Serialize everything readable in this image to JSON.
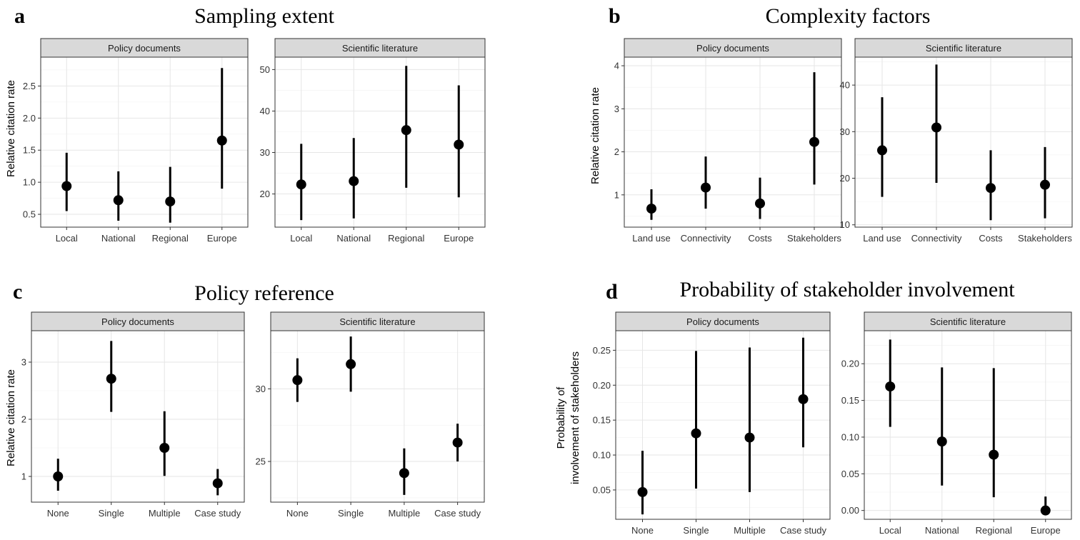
{
  "chart_data": [
    {
      "panel": "a",
      "title": "Sampling extent",
      "ylabel": "Relative citation rate",
      "type": "scatter",
      "facets": [
        {
          "label": "Policy documents",
          "categories": [
            "Local",
            "National",
            "Regional",
            "Europe"
          ],
          "values": [
            0.94,
            0.72,
            0.7,
            1.65
          ],
          "lower": [
            0.55,
            0.4,
            0.37,
            0.9
          ],
          "upper": [
            1.46,
            1.17,
            1.24,
            2.78
          ],
          "ylim": [
            0.3,
            2.95
          ],
          "yticks": [
            0.5,
            1.0,
            1.5,
            2.0,
            2.5
          ],
          "yticklabels": [
            "0.5",
            "1.0",
            "1.5",
            "2.0",
            "2.5"
          ]
        },
        {
          "label": "Scientific literature",
          "categories": [
            "Local",
            "National",
            "Regional",
            "Europe"
          ],
          "values": [
            22.3,
            23.1,
            35.4,
            31.9
          ],
          "lower": [
            13.7,
            14.1,
            21.5,
            19.2
          ],
          "upper": [
            32.1,
            33.5,
            50.9,
            46.2
          ],
          "ylim": [
            12.0,
            53.0
          ],
          "yticks": [
            20,
            30,
            40,
            50
          ],
          "yticklabels": [
            "20",
            "30",
            "40",
            "50"
          ]
        }
      ]
    },
    {
      "panel": "b",
      "title": "Complexity factors",
      "ylabel": "Relative citation rate",
      "type": "scatter",
      "facets": [
        {
          "label": "Policy documents",
          "categories": [
            "Land use",
            "Connectivity",
            "Costs",
            "Stakeholders"
          ],
          "values": [
            0.68,
            1.17,
            0.8,
            2.23
          ],
          "lower": [
            0.42,
            0.68,
            0.44,
            1.24
          ],
          "upper": [
            1.13,
            1.89,
            1.4,
            3.85
          ],
          "ylim": [
            0.25,
            4.2
          ],
          "yticks": [
            1,
            2,
            3,
            4
          ],
          "yticklabels": [
            "1",
            "2",
            "3",
            "4"
          ]
        },
        {
          "label": "Scientific literature",
          "categories": [
            "Land use",
            "Connectivity",
            "Costs",
            "Stakeholders"
          ],
          "values": [
            26.0,
            30.9,
            17.9,
            18.6
          ],
          "lower": [
            16.0,
            19.0,
            11.0,
            11.4
          ],
          "upper": [
            37.4,
            44.4,
            26.0,
            26.7
          ],
          "ylim": [
            9.5,
            46.0
          ],
          "yticks": [
            10,
            20,
            30,
            40
          ],
          "yticklabels": [
            "10",
            "20",
            "30",
            "40"
          ]
        }
      ]
    },
    {
      "panel": "c",
      "title": "Policy reference",
      "ylabel": "Relative citation rate",
      "type": "scatter",
      "facets": [
        {
          "label": "Policy documents",
          "categories": [
            "None",
            "Single",
            "Multiple",
            "Case study"
          ],
          "values": [
            1.0,
            2.71,
            1.5,
            0.88
          ],
          "lower": [
            0.75,
            2.13,
            1.01,
            0.67
          ],
          "upper": [
            1.31,
            3.37,
            2.14,
            1.13
          ],
          "ylim": [
            0.55,
            3.55
          ],
          "yticks": [
            1,
            2,
            3
          ],
          "yticklabels": [
            "1",
            "2",
            "3"
          ]
        },
        {
          "label": "Scientific literature",
          "categories": [
            "None",
            "Single",
            "Multiple",
            "Case study"
          ],
          "values": [
            30.6,
            31.7,
            24.2,
            26.3
          ],
          "lower": [
            29.1,
            29.8,
            22.7,
            25.0
          ],
          "upper": [
            32.1,
            33.6,
            25.9,
            27.6
          ],
          "ylim": [
            22.2,
            34.0
          ],
          "yticks": [
            25,
            30
          ],
          "yticklabels": [
            "25",
            "30"
          ]
        }
      ]
    },
    {
      "panel": "d",
      "title": "Probability of stakeholder involvement",
      "ylabel": "Probability of involvement of stakeholders",
      "ylabel_lines": [
        "Probability of",
        "involvement of stakeholders"
      ],
      "type": "scatter",
      "facets": [
        {
          "label": "Policy documents",
          "categories": [
            "None",
            "Single",
            "Multiple",
            "Case study"
          ],
          "values": [
            0.047,
            0.131,
            0.125,
            0.18
          ],
          "lower": [
            0.015,
            0.052,
            0.047,
            0.111
          ],
          "upper": [
            0.106,
            0.249,
            0.254,
            0.268
          ],
          "ylim": [
            0.008,
            0.278
          ],
          "yticks": [
            0.05,
            0.1,
            0.15,
            0.2,
            0.25
          ],
          "yticklabels": [
            "0.05",
            "0.10",
            "0.15",
            "0.20",
            "0.25"
          ]
        },
        {
          "label": "Scientific literature",
          "categories": [
            "Local",
            "National",
            "Regional",
            "Europe"
          ],
          "values": [
            0.169,
            0.094,
            0.076,
            0.0
          ],
          "lower": [
            0.114,
            0.034,
            0.018,
            0.0
          ],
          "upper": [
            0.233,
            0.195,
            0.194,
            0.019
          ],
          "ylim": [
            -0.012,
            0.245
          ],
          "yticks": [
            0.0,
            0.05,
            0.1,
            0.15,
            0.2
          ],
          "yticklabels": [
            "0.00",
            "0.05",
            "0.10",
            "0.15",
            "0.20"
          ]
        }
      ]
    }
  ]
}
